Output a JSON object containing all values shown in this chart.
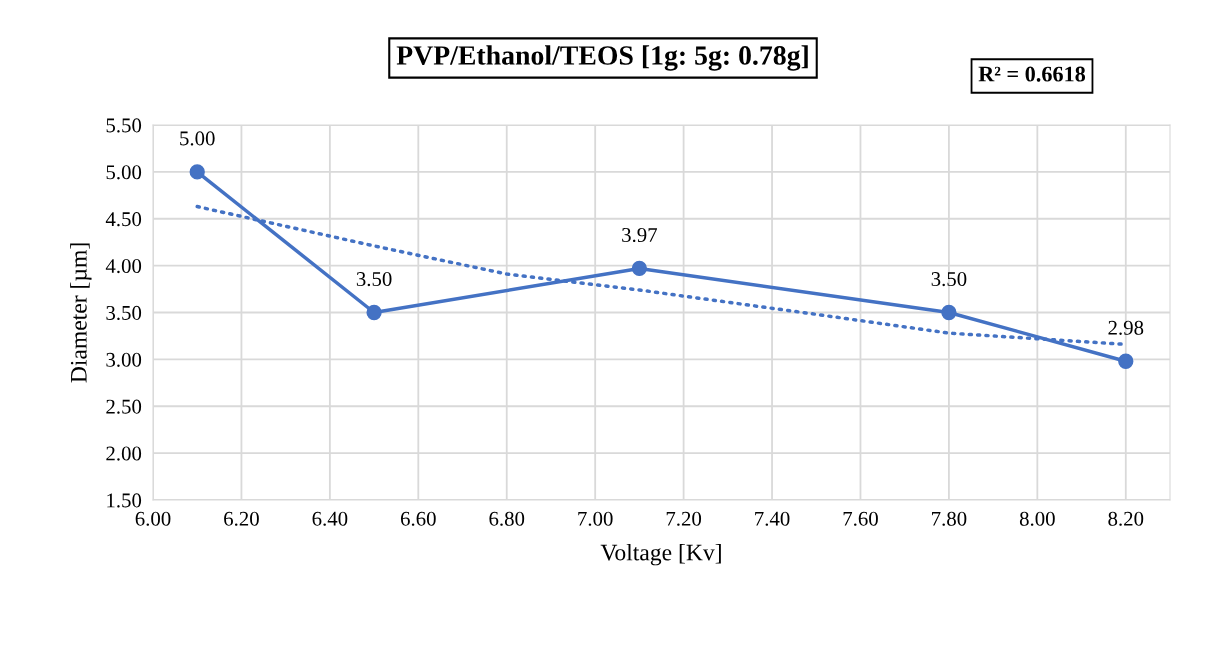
{
  "chart_data": {
    "type": "line",
    "title": "PVP/Ethanol/TEOS [1g: 5g: 0.78g]",
    "xlabel": "Voltage [Kv]",
    "ylabel": "Diameter [µm]",
    "annotations": [
      "R² = 0.6618"
    ],
    "x": [
      6.1,
      6.5,
      7.1,
      7.8,
      8.2
    ],
    "series": [
      {
        "type": "line",
        "color": "#4472c4",
        "x": [
          6.1,
          6.5,
          6.8,
          7.1,
          7.5,
          7.8,
          8.2
        ],
        "values": [
          4.63,
          4.21,
          3.91,
          3.74,
          3.48,
          3.28,
          3.16
        ],
        "marker": "none",
        "line_style": "dotted"
      },
      {
        "color": "#4472c4",
        "values": [
          5.0,
          3.5,
          3.97,
          3.5,
          2.98
        ],
        "marker": "circle",
        "line_style": "solid",
        "data_labels": true,
        "value_labels": [
          "5.00",
          "3.50",
          "3.97",
          "3.50",
          "2.98"
        ]
      }
    ],
    "xlim": [
      6.0,
      8.3
    ],
    "ylim": [
      1.5,
      5.5
    ],
    "xticks": [
      {
        "value": 6.0,
        "label": "6.00"
      },
      {
        "value": 6.2,
        "label": "6.20"
      },
      {
        "value": 6.4,
        "label": "6.40"
      },
      {
        "value": 6.6,
        "label": "6.60"
      },
      {
        "value": 6.8,
        "label": "6.80"
      },
      {
        "value": 7.0,
        "label": "7.00"
      },
      {
        "value": 7.2,
        "label": "7.20"
      },
      {
        "value": 7.4,
        "label": "7.40"
      },
      {
        "value": 7.6,
        "label": "7.60"
      },
      {
        "value": 7.8,
        "label": "7.80"
      },
      {
        "value": 8.0,
        "label": "8.00"
      },
      {
        "value": 8.2,
        "label": "8.20"
      }
    ],
    "yticks": [
      {
        "value": 1.5,
        "label": "1.50"
      },
      {
        "value": 2.0,
        "label": "2.00"
      },
      {
        "value": 2.5,
        "label": "2.50"
      },
      {
        "value": 3.0,
        "label": "3.00"
      },
      {
        "value": 3.5,
        "label": "3.50"
      },
      {
        "value": 4.0,
        "label": "4.00"
      },
      {
        "value": 4.5,
        "label": "4.50"
      },
      {
        "value": 5.0,
        "label": "5.00"
      },
      {
        "value": 5.5,
        "label": "5.50"
      }
    ],
    "grid": true,
    "legend": false
  }
}
